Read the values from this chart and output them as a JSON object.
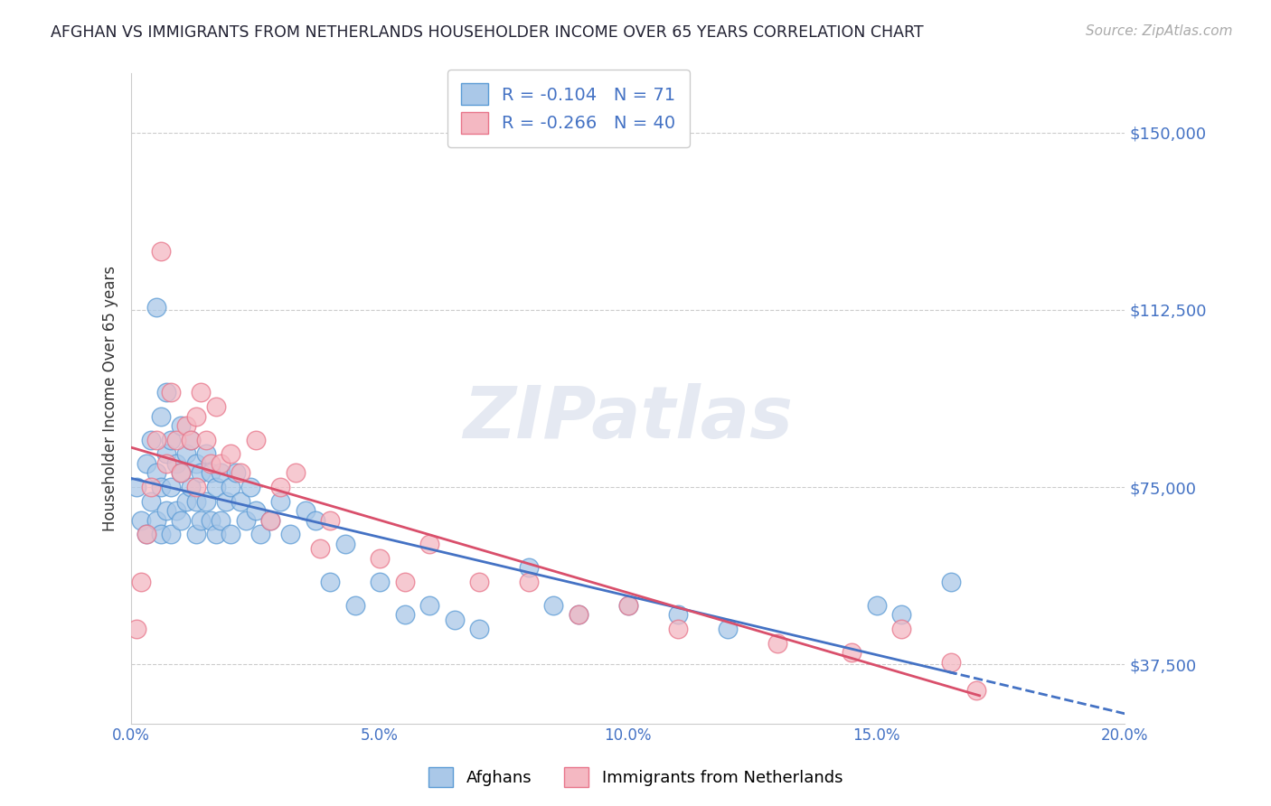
{
  "title": "AFGHAN VS IMMIGRANTS FROM NETHERLANDS HOUSEHOLDER INCOME OVER 65 YEARS CORRELATION CHART",
  "source": "Source: ZipAtlas.com",
  "ylabel": "Householder Income Over 65 years",
  "watermark": "ZIPatlas",
  "xlim": [
    0.0,
    0.2
  ],
  "ylim": [
    25000,
    162500
  ],
  "yticks": [
    37500,
    75000,
    112500,
    150000
  ],
  "ytick_labels": [
    "$37,500",
    "$75,000",
    "$112,500",
    "$150,000"
  ],
  "xticks": [
    0.0,
    0.05,
    0.1,
    0.15,
    0.2
  ],
  "xtick_labels": [
    "0.0%",
    "5.0%",
    "10.0%",
    "15.0%",
    "20.0%"
  ],
  "blue_color": "#aac8e8",
  "pink_color": "#f4b8c2",
  "blue_edge_color": "#5b9bd5",
  "pink_edge_color": "#e8758a",
  "blue_line_color": "#4472C4",
  "pink_line_color": "#d94f6b",
  "blue_R": -0.104,
  "blue_N": 71,
  "pink_R": -0.266,
  "pink_N": 40,
  "legend_label_blue": "Afghans",
  "legend_label_pink": "Immigrants from Netherlands",
  "title_color": "#222233",
  "axis_label_color": "#333333",
  "tick_color": "#4472C4",
  "grid_color": "#cccccc",
  "background_color": "#ffffff",
  "afghans_x": [
    0.001,
    0.002,
    0.003,
    0.003,
    0.004,
    0.004,
    0.005,
    0.005,
    0.005,
    0.006,
    0.006,
    0.006,
    0.007,
    0.007,
    0.007,
    0.008,
    0.008,
    0.008,
    0.009,
    0.009,
    0.01,
    0.01,
    0.01,
    0.011,
    0.011,
    0.012,
    0.012,
    0.013,
    0.013,
    0.013,
    0.014,
    0.014,
    0.015,
    0.015,
    0.016,
    0.016,
    0.017,
    0.017,
    0.018,
    0.018,
    0.019,
    0.02,
    0.02,
    0.021,
    0.022,
    0.023,
    0.024,
    0.025,
    0.026,
    0.028,
    0.03,
    0.032,
    0.035,
    0.037,
    0.04,
    0.043,
    0.045,
    0.05,
    0.055,
    0.06,
    0.065,
    0.07,
    0.08,
    0.085,
    0.09,
    0.1,
    0.11,
    0.12,
    0.15,
    0.155,
    0.165
  ],
  "afghans_y": [
    75000,
    68000,
    80000,
    65000,
    85000,
    72000,
    113000,
    78000,
    68000,
    90000,
    75000,
    65000,
    95000,
    82000,
    70000,
    85000,
    75000,
    65000,
    80000,
    70000,
    88000,
    78000,
    68000,
    82000,
    72000,
    85000,
    75000,
    80000,
    72000,
    65000,
    78000,
    68000,
    82000,
    72000,
    78000,
    68000,
    75000,
    65000,
    78000,
    68000,
    72000,
    75000,
    65000,
    78000,
    72000,
    68000,
    75000,
    70000,
    65000,
    68000,
    72000,
    65000,
    70000,
    68000,
    55000,
    63000,
    50000,
    55000,
    48000,
    50000,
    47000,
    45000,
    58000,
    50000,
    48000,
    50000,
    48000,
    45000,
    50000,
    48000,
    55000
  ],
  "netherlands_x": [
    0.001,
    0.002,
    0.003,
    0.004,
    0.005,
    0.006,
    0.007,
    0.008,
    0.009,
    0.01,
    0.011,
    0.012,
    0.013,
    0.013,
    0.014,
    0.015,
    0.016,
    0.017,
    0.018,
    0.02,
    0.022,
    0.025,
    0.028,
    0.03,
    0.033,
    0.038,
    0.04,
    0.05,
    0.055,
    0.06,
    0.07,
    0.08,
    0.09,
    0.1,
    0.11,
    0.13,
    0.145,
    0.155,
    0.165,
    0.17
  ],
  "netherlands_y": [
    45000,
    55000,
    65000,
    75000,
    85000,
    125000,
    80000,
    95000,
    85000,
    78000,
    88000,
    85000,
    90000,
    75000,
    95000,
    85000,
    80000,
    92000,
    80000,
    82000,
    78000,
    85000,
    68000,
    75000,
    78000,
    62000,
    68000,
    60000,
    55000,
    63000,
    55000,
    55000,
    48000,
    50000,
    45000,
    42000,
    40000,
    45000,
    38000,
    32000
  ]
}
